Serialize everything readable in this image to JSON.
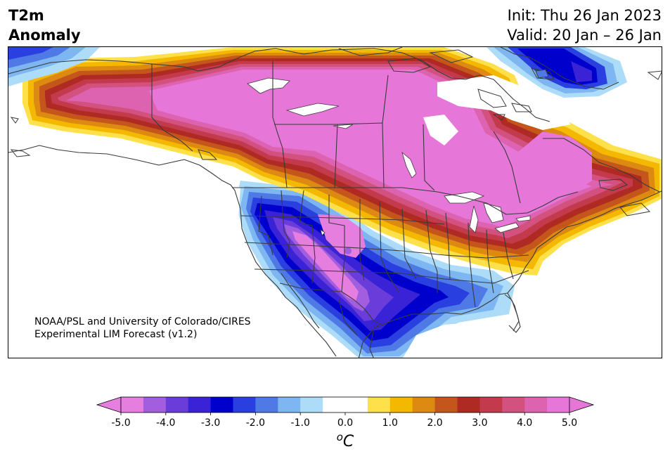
{
  "title": {
    "line1": "T2m",
    "line2": "Anomaly"
  },
  "init_text": "Init: Thu 26 Jan 2023",
  "valid_text": "Valid: 20 Jan – 26 Jan",
  "credit": {
    "line1": "NOAA/PSL and University of Colorado/CIRES",
    "line2": "Experimental LIM Forecast (v1.2)"
  },
  "colorbar": {
    "unit_label": "°C",
    "unit_base": "o",
    "unit_letter": "C",
    "ticks": [
      "-5.0",
      "-4.0",
      "-3.0",
      "-2.0",
      "-1.0",
      "0.0",
      "1.0",
      "2.0",
      "3.0",
      "4.0",
      "5.0"
    ],
    "bins": [
      {
        "color": "#e67ee0"
      },
      {
        "color": "#a35ee0"
      },
      {
        "color": "#6a3ddb"
      },
      {
        "color": "#3a22d6"
      },
      {
        "color": "#0000cc"
      },
      {
        "color": "#2a3fe0"
      },
      {
        "color": "#4f7ae6"
      },
      {
        "color": "#7db6f0"
      },
      {
        "color": "#acdcf8"
      },
      {
        "color": "#ffffff"
      },
      {
        "color": "#ffffff"
      },
      {
        "color": "#fde04a"
      },
      {
        "color": "#f4b800"
      },
      {
        "color": "#dd8a12"
      },
      {
        "color": "#c4561c"
      },
      {
        "color": "#ae2a22"
      },
      {
        "color": "#c23a4c"
      },
      {
        "color": "#d2517e"
      },
      {
        "color": "#dd62b0"
      },
      {
        "color": "#e677d8"
      }
    ],
    "extend_low_color": "#e67ee0",
    "extend_high_color": "#e677d8"
  },
  "colors": {
    "warm_extreme": "#e677d8",
    "cold_extreme": "#0000cc",
    "border": "#3a3a3a"
  }
}
